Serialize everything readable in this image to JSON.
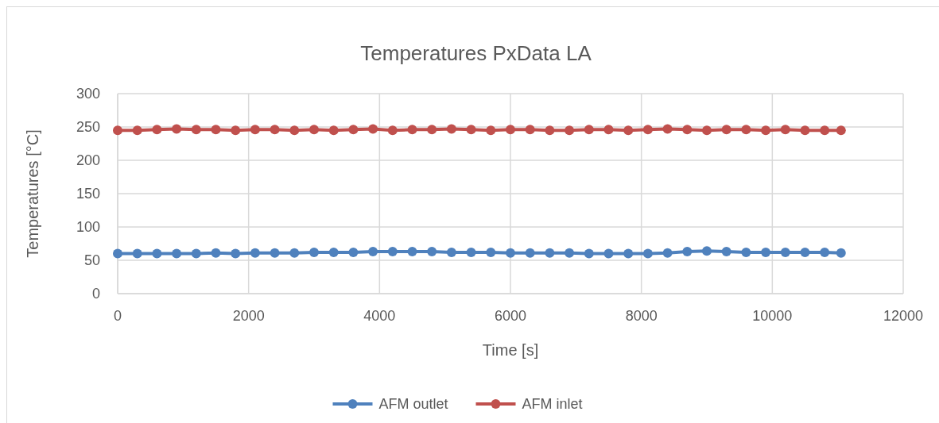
{
  "chart_data": {
    "type": "line",
    "title": "Temperatures PxData LA",
    "xlabel": "Time [s]",
    "ylabel": "Temperatures [°C]",
    "x": [
      0,
      300,
      600,
      900,
      1200,
      1500,
      1800,
      2100,
      2400,
      2700,
      3000,
      3300,
      3600,
      3900,
      4200,
      4500,
      4800,
      5100,
      5400,
      5700,
      6000,
      6300,
      6600,
      6900,
      7200,
      7500,
      7800,
      8100,
      8400,
      8700,
      9000,
      9300,
      9600,
      9900,
      10200,
      10500,
      10800,
      11050
    ],
    "series": [
      {
        "name": "AFM outlet",
        "color": "#4f81bd",
        "values": [
          60,
          60,
          60,
          60,
          60,
          61,
          60,
          61,
          61,
          61,
          62,
          62,
          62,
          63,
          63,
          63,
          63,
          62,
          62,
          62,
          61,
          61,
          61,
          61,
          60,
          60,
          60,
          60,
          61,
          63,
          64,
          63,
          62,
          62,
          62,
          62,
          62,
          61
        ]
      },
      {
        "name": "AFM inlet",
        "color": "#c0504d",
        "values": [
          245,
          245,
          246,
          247,
          246,
          246,
          245,
          246,
          246,
          245,
          246,
          245,
          246,
          247,
          245,
          246,
          246,
          247,
          246,
          245,
          246,
          246,
          245,
          245,
          246,
          246,
          245,
          246,
          247,
          246,
          245,
          246,
          246,
          245,
          246,
          245,
          245,
          245
        ]
      }
    ],
    "xlim": [
      0,
      12000
    ],
    "xticks": [
      0,
      2000,
      4000,
      6000,
      8000,
      10000,
      12000
    ],
    "ylim": [
      0,
      300
    ],
    "yticks": [
      0,
      50,
      100,
      150,
      200,
      250,
      300
    ],
    "grid": true,
    "legend": "bottom",
    "marker": "circle",
    "line_style": "solid"
  }
}
